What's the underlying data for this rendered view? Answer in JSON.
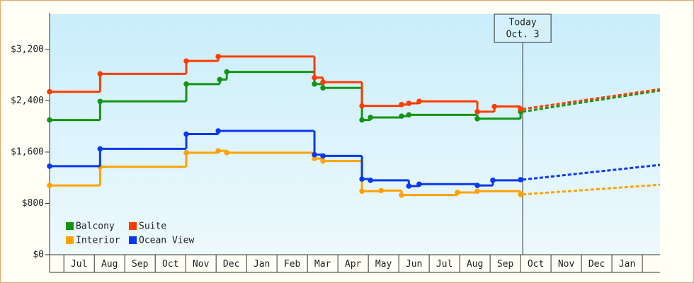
{
  "chart_data": {
    "type": "step-line",
    "xlim": [
      -0.47,
      19.58
    ],
    "xticks": [
      {
        "value": 0.5,
        "label": "Jul"
      },
      {
        "value": 1.5,
        "label": "Aug"
      },
      {
        "value": 2.5,
        "label": "Sep"
      },
      {
        "value": 3.5,
        "label": "Oct"
      },
      {
        "value": 4.5,
        "label": "Nov"
      },
      {
        "value": 5.5,
        "label": "Dec"
      },
      {
        "value": 6.5,
        "label": "Jan"
      },
      {
        "value": 7.5,
        "label": "Feb"
      },
      {
        "value": 8.5,
        "label": "Mar"
      },
      {
        "value": 9.5,
        "label": "Apr"
      },
      {
        "value": 10.5,
        "label": "May"
      },
      {
        "value": 11.5,
        "label": "Jun"
      },
      {
        "value": 12.5,
        "label": "Jul"
      },
      {
        "value": 13.5,
        "label": "Aug"
      },
      {
        "value": 14.5,
        "label": "Sep"
      },
      {
        "value": 15.5,
        "label": "Oct"
      },
      {
        "value": 16.5,
        "label": "Nov"
      },
      {
        "value": 17.5,
        "label": "Dec"
      },
      {
        "value": 18.5,
        "label": "Jan"
      }
    ],
    "ylim": [
      0,
      3750
    ],
    "yticks": [
      {
        "value": 0,
        "label": "$0"
      },
      {
        "value": 800,
        "label": "$800"
      },
      {
        "value": 1600,
        "label": "$1,600"
      },
      {
        "value": 2400,
        "label": "$2,400"
      },
      {
        "value": 3200,
        "label": "$3,200"
      }
    ],
    "annotation": {
      "x": 15.07,
      "text": [
        "Today",
        "Oct. 3"
      ]
    },
    "series": [
      {
        "name": "Balcony",
        "color": "#149414",
        "x": [
          -0.47,
          1.19,
          4.02,
          5.12,
          5.35,
          8.23,
          8.51,
          9.79,
          10.07,
          11.09,
          11.33,
          13.58,
          15.0
        ],
        "values": [
          2100,
          2390,
          2660,
          2730,
          2850,
          2660,
          2600,
          2100,
          2140,
          2160,
          2180,
          2120,
          2230
        ],
        "forecast": {
          "x": [
            15.07,
            19.58
          ],
          "values": [
            2230,
            2560
          ]
        }
      },
      {
        "name": "Suite",
        "color": "#ff3c00",
        "x": [
          -0.47,
          1.19,
          4.02,
          5.07,
          8.23,
          8.51,
          9.79,
          11.09,
          11.33,
          11.67,
          13.58,
          14.14,
          15.0
        ],
        "values": [
          2540,
          2820,
          3020,
          3090,
          2760,
          2690,
          2320,
          2340,
          2360,
          2390,
          2230,
          2310,
          2270
        ],
        "forecast": {
          "x": [
            15.07,
            19.58
          ],
          "values": [
            2270,
            2580
          ]
        }
      },
      {
        "name": "Interior",
        "color": "#ffa200",
        "x": [
          -0.47,
          1.19,
          4.02,
          5.07,
          5.35,
          8.23,
          8.51,
          9.79,
          10.42,
          11.09,
          12.93,
          13.58,
          15.0
        ],
        "values": [
          1080,
          1370,
          1590,
          1620,
          1590,
          1500,
          1460,
          990,
          1000,
          930,
          970,
          990,
          940
        ],
        "forecast": {
          "x": [
            15.07,
            19.58
          ],
          "values": [
            940,
            1090
          ]
        }
      },
      {
        "name": "Ocean View",
        "color": "#0a38f0",
        "x": [
          -0.47,
          1.19,
          4.02,
          5.07,
          8.23,
          8.51,
          9.79,
          10.07,
          11.33,
          11.67,
          13.58,
          14.09,
          15.0
        ],
        "values": [
          1380,
          1650,
          1880,
          1930,
          1560,
          1540,
          1180,
          1160,
          1070,
          1100,
          1080,
          1160,
          1170
        ],
        "forecast": {
          "x": [
            15.07,
            19.58
          ],
          "values": [
            1170,
            1400
          ]
        }
      }
    ]
  }
}
